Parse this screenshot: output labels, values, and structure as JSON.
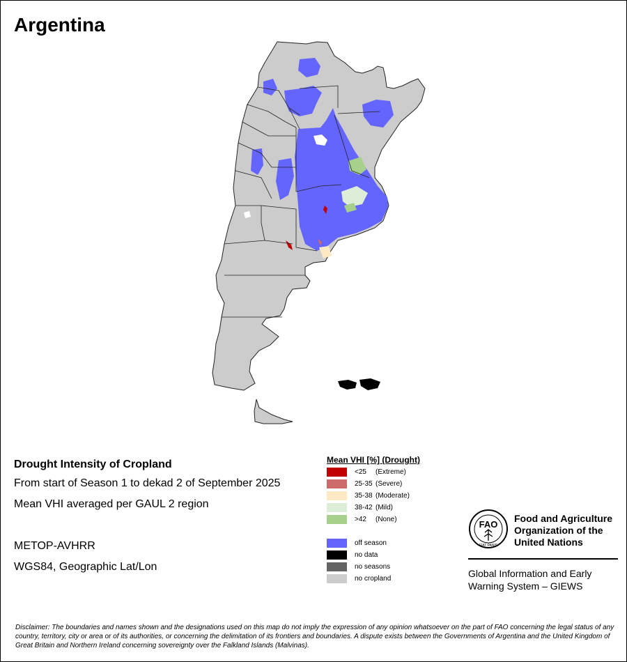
{
  "map": {
    "title": "Argentina",
    "colors": {
      "border": "#222222",
      "no_cropland": "#cccccc",
      "off_season": "#6464ff",
      "mild": "#dcedd8",
      "none": "#a8d08d",
      "moderate": "#fde9c4",
      "extreme": "#c00000"
    }
  },
  "info": {
    "heading": "Drought Intensity of Cropland",
    "period": "From start of Season 1 to dekad 2 of September 2025",
    "method": "Mean VHI averaged per GAUL 2 region",
    "sensor": "METOP-AVHRR",
    "projection": "WGS84, Geographic Lat/Lon"
  },
  "legend": {
    "title": "Mean VHI [%] (Drought)",
    "classes": [
      {
        "range": "<25",
        "desc": "(Extreme)",
        "color": "#c00000"
      },
      {
        "range": "25-35",
        "desc": "(Severe)",
        "color": "#cd6a6a"
      },
      {
        "range": "35-38",
        "desc": "(Moderate)",
        "color": "#fde9c4"
      },
      {
        "range": "38-42",
        "desc": "(Mild)",
        "color": "#dcedd8"
      },
      {
        "range": ">42",
        "desc": "(None)",
        "color": "#a8d08d"
      }
    ],
    "other": [
      {
        "label": "off season",
        "color": "#6464ff"
      },
      {
        "label": "no data",
        "color": "#000000"
      },
      {
        "label": "no seasons",
        "color": "#646464"
      },
      {
        "label": "no cropland",
        "color": "#cccccc"
      }
    ]
  },
  "fao": {
    "logo_text": "FAO",
    "logo_motto": "FIAT PANIS",
    "name_line1": "Food and Agriculture",
    "name_line2": "Organization of the",
    "name_line3": "United Nations",
    "giews_line1": "Global Information and Early",
    "giews_line2": "Warning System – GIEWS"
  },
  "disclaimer": "Disclaimer: The boundaries and names shown and the designations used on this map do not imply the expression of any opinion whatsoever on the part of FAO concerning the legal status of any country, territory, city or area or of its authorities, or concerning the delimitation of its frontiers and boundaries. A dispute exists between the Governments of Argentina and the United Kingdom of Great Britain and Northern Ireland concerning sovereignty over the Falkland Islands (Malvinas)."
}
